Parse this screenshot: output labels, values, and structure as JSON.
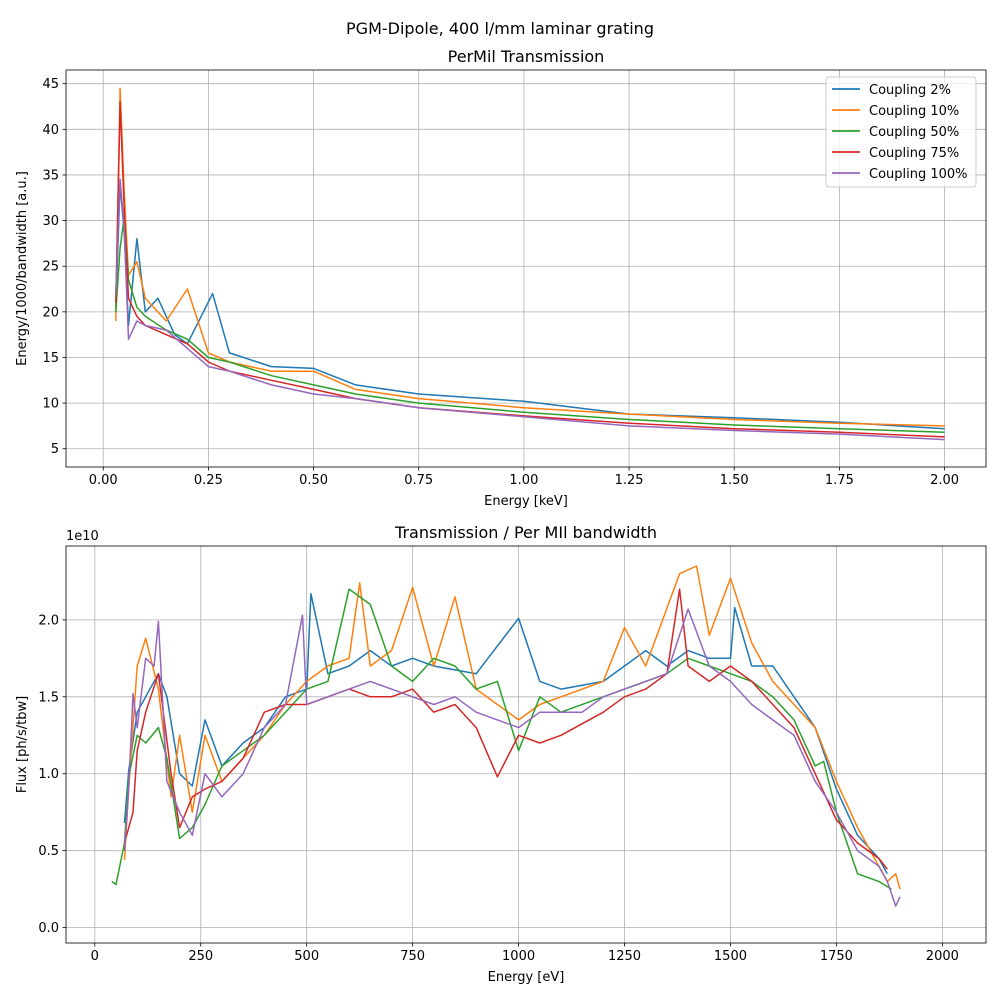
{
  "figure": {
    "suptitle": "PGM-Dipole, 400 l/mm laminar grating"
  },
  "colors": {
    "Coupling 2%": "#1f77b4",
    "Coupling 10%": "#ff7f0e",
    "Coupling 50%": "#2ca02c",
    "Coupling 75%": "#d62728",
    "Coupling 100%": "#9467bd"
  },
  "chart_data": [
    {
      "type": "line",
      "title": "PerMil Transmission",
      "xlabel": "Energy [keV]",
      "ylabel": "Energy/1000/bandwidth [a.u.]",
      "xlim": [
        -0.0885,
        2.0985
      ],
      "ylim": [
        3.0,
        46.5
      ],
      "xticks": [
        0.0,
        0.25,
        0.5,
        0.75,
        1.0,
        1.25,
        1.5,
        1.75,
        2.0
      ],
      "xtick_labels": [
        "0.00",
        "0.25",
        "0.50",
        "0.75",
        "1.00",
        "1.25",
        "1.50",
        "1.75",
        "2.00"
      ],
      "yticks": [
        5,
        10,
        15,
        20,
        25,
        30,
        35,
        40,
        45
      ],
      "ytick_labels": [
        "5",
        "10",
        "15",
        "20",
        "25",
        "30",
        "35",
        "40",
        "45"
      ],
      "grid": true,
      "legend": "upper right",
      "series": [
        {
          "name": "Coupling 2%",
          "x": [
            0.03,
            0.04,
            0.05,
            0.06,
            0.08,
            0.1,
            0.13,
            0.17,
            0.2,
            0.26,
            0.3,
            0.4,
            0.5,
            0.6,
            0.75,
            1.0,
            1.25,
            1.5,
            1.75,
            2.0
          ],
          "y": [
            20.5,
            34.0,
            28.5,
            18.5,
            28.0,
            20.0,
            21.5,
            17.5,
            16.5,
            22.0,
            15.5,
            14.0,
            13.8,
            12.0,
            11.0,
            10.2,
            8.8,
            8.4,
            7.9,
            7.2
          ]
        },
        {
          "name": "Coupling 10%",
          "x": [
            0.03,
            0.04,
            0.05,
            0.06,
            0.08,
            0.1,
            0.15,
            0.2,
            0.25,
            0.3,
            0.4,
            0.5,
            0.6,
            0.75,
            1.0,
            1.25,
            1.5,
            1.75,
            2.0
          ],
          "y": [
            19.0,
            44.5,
            33.0,
            24.0,
            25.5,
            21.5,
            19.0,
            22.5,
            15.5,
            14.5,
            13.5,
            13.5,
            11.5,
            10.5,
            9.5,
            8.8,
            8.2,
            7.8,
            7.5
          ]
        },
        {
          "name": "Coupling 50%",
          "x": [
            0.03,
            0.04,
            0.05,
            0.06,
            0.08,
            0.1,
            0.15,
            0.2,
            0.25,
            0.3,
            0.4,
            0.5,
            0.6,
            0.75,
            1.0,
            1.25,
            1.5,
            1.75,
            2.0
          ],
          "y": [
            20.0,
            27.0,
            30.5,
            23.5,
            20.5,
            19.5,
            18.0,
            17.0,
            15.0,
            14.5,
            13.0,
            12.0,
            11.0,
            10.0,
            9.0,
            8.2,
            7.6,
            7.2,
            6.8
          ]
        },
        {
          "name": "Coupling 75%",
          "x": [
            0.03,
            0.04,
            0.05,
            0.06,
            0.08,
            0.1,
            0.15,
            0.2,
            0.25,
            0.3,
            0.4,
            0.5,
            0.6,
            0.75,
            1.0,
            1.25,
            1.5,
            1.75,
            2.0
          ],
          "y": [
            21.0,
            43.0,
            31.0,
            21.5,
            19.5,
            18.5,
            17.5,
            16.5,
            14.5,
            13.5,
            12.5,
            11.5,
            10.5,
            9.5,
            8.6,
            7.8,
            7.2,
            6.8,
            6.3
          ]
        },
        {
          "name": "Coupling 100%",
          "x": [
            0.03,
            0.04,
            0.05,
            0.06,
            0.08,
            0.1,
            0.15,
            0.2,
            0.25,
            0.3,
            0.4,
            0.5,
            0.6,
            0.75,
            1.0,
            1.25,
            1.5,
            1.75,
            2.0
          ],
          "y": [
            22.0,
            34.5,
            29.0,
            17.0,
            19.0,
            18.5,
            18.0,
            16.0,
            14.0,
            13.5,
            12.0,
            11.0,
            10.5,
            9.5,
            8.5,
            7.5,
            7.0,
            6.6,
            6.0
          ]
        }
      ]
    },
    {
      "type": "line",
      "title": "Transmission / Per MIl bandwidth",
      "xlabel": "Energy [eV]",
      "ylabel": "Flux [ph/s/tbw]",
      "offset_text": "1e10",
      "xlim": [
        -68.0,
        2103.0
      ],
      "ylim": [
        -0.1,
        2.48
      ],
      "xticks": [
        0,
        250,
        500,
        750,
        1000,
        1250,
        1500,
        1750,
        2000
      ],
      "xtick_labels": [
        "0",
        "250",
        "500",
        "750",
        "1000",
        "1250",
        "1500",
        "1750",
        "2000"
      ],
      "yticks": [
        0.0,
        0.5,
        1.0,
        1.5,
        2.0
      ],
      "ytick_labels": [
        "0.0",
        "0.5",
        "1.0",
        "1.5",
        "2.0"
      ],
      "grid": true,
      "series": [
        {
          "name": "Coupling 2%",
          "x": [
            70,
            80,
            100,
            120,
            150,
            170,
            200,
            230,
            260,
            300,
            350,
            400,
            450,
            500,
            510,
            550,
            600,
            650,
            700,
            750,
            800,
            900,
            1000,
            1050,
            1100,
            1200,
            1250,
            1300,
            1350,
            1400,
            1450,
            1500,
            1510,
            1550,
            1600,
            1650,
            1700,
            1750,
            1800,
            1850,
            1870
          ],
          "y": [
            0.68,
            1.02,
            1.4,
            1.5,
            1.65,
            1.5,
            1.0,
            0.92,
            1.35,
            1.05,
            1.2,
            1.3,
            1.5,
            1.55,
            2.17,
            1.65,
            1.7,
            1.8,
            1.7,
            1.75,
            1.7,
            1.65,
            2.01,
            1.6,
            1.55,
            1.6,
            1.7,
            1.8,
            1.7,
            1.8,
            1.75,
            1.75,
            2.08,
            1.7,
            1.7,
            1.5,
            1.3,
            0.9,
            0.6,
            0.45,
            0.35
          ]
        },
        {
          "name": "Coupling 10%",
          "x": [
            70,
            80,
            100,
            120,
            150,
            180,
            200,
            230,
            260,
            300,
            350,
            400,
            450,
            500,
            550,
            600,
            625,
            650,
            700,
            750,
            800,
            850,
            900,
            1000,
            1050,
            1100,
            1200,
            1250,
            1300,
            1380,
            1420,
            1450,
            1500,
            1550,
            1600,
            1650,
            1700,
            1750,
            1800,
            1850,
            1870,
            1890,
            1900
          ],
          "y": [
            0.44,
            0.9,
            1.7,
            1.88,
            1.55,
            0.85,
            1.25,
            0.75,
            1.25,
            0.95,
            1.1,
            1.25,
            1.45,
            1.6,
            1.7,
            1.75,
            2.24,
            1.7,
            1.8,
            2.21,
            1.7,
            2.15,
            1.55,
            1.35,
            1.45,
            1.5,
            1.6,
            1.95,
            1.7,
            2.3,
            2.35,
            1.9,
            2.27,
            1.85,
            1.6,
            1.45,
            1.3,
            0.95,
            0.65,
            0.4,
            0.3,
            0.35,
            0.25
          ]
        },
        {
          "name": "Coupling 50%",
          "x": [
            40,
            50,
            70,
            80,
            100,
            120,
            150,
            170,
            200,
            230,
            260,
            300,
            350,
            400,
            450,
            500,
            550,
            600,
            650,
            700,
            750,
            800,
            850,
            900,
            950,
            1000,
            1050,
            1100,
            1200,
            1250,
            1300,
            1350,
            1400,
            1450,
            1500,
            1550,
            1600,
            1650,
            1700,
            1720,
            1750,
            1800,
            1850,
            1880
          ],
          "y": [
            0.3,
            0.28,
            0.55,
            0.98,
            1.25,
            1.2,
            1.3,
            1.1,
            0.58,
            0.65,
            0.8,
            1.05,
            1.15,
            1.25,
            1.4,
            1.55,
            1.6,
            2.2,
            2.1,
            1.7,
            1.6,
            1.75,
            1.7,
            1.55,
            1.6,
            1.15,
            1.5,
            1.4,
            1.5,
            1.55,
            1.6,
            1.65,
            1.75,
            1.7,
            1.65,
            1.6,
            1.5,
            1.35,
            1.05,
            1.08,
            0.75,
            0.35,
            0.3,
            0.25
          ]
        },
        {
          "name": "Coupling 75%",
          "x": [
            70,
            90,
            100,
            120,
            150,
            180,
            200,
            230,
            260,
            300,
            350,
            400,
            450,
            500,
            550,
            600,
            650,
            700,
            750,
            800,
            850,
            900,
            950,
            1000,
            1050,
            1100,
            1200,
            1250,
            1300,
            1350,
            1380,
            1400,
            1450,
            1500,
            1550,
            1600,
            1650,
            1700,
            1750,
            1800,
            1850,
            1870
          ],
          "y": [
            0.55,
            0.75,
            1.15,
            1.4,
            1.65,
            1.0,
            0.65,
            0.85,
            0.9,
            0.95,
            1.1,
            1.4,
            1.45,
            1.45,
            1.5,
            1.55,
            1.5,
            1.5,
            1.55,
            1.4,
            1.45,
            1.3,
            0.98,
            1.25,
            1.2,
            1.25,
            1.4,
            1.5,
            1.55,
            1.65,
            2.2,
            1.7,
            1.6,
            1.7,
            1.6,
            1.45,
            1.3,
            1.0,
            0.7,
            0.55,
            0.45,
            0.38
          ]
        },
        {
          "name": "Coupling 100%",
          "x": [
            70,
            80,
            90,
            100,
            120,
            140,
            150,
            170,
            200,
            230,
            260,
            300,
            350,
            400,
            450,
            490,
            500,
            550,
            600,
            650,
            700,
            750,
            800,
            850,
            900,
            950,
            1000,
            1050,
            1100,
            1150,
            1200,
            1250,
            1300,
            1350,
            1400,
            1450,
            1500,
            1550,
            1600,
            1650,
            1700,
            1750,
            1800,
            1850,
            1870,
            1890,
            1900
          ],
          "y": [
            0.5,
            0.9,
            1.52,
            1.3,
            1.75,
            1.7,
            1.99,
            0.95,
            0.75,
            0.6,
            1.0,
            0.85,
            1.0,
            1.3,
            1.45,
            2.03,
            1.45,
            1.5,
            1.55,
            1.6,
            1.55,
            1.5,
            1.45,
            1.5,
            1.4,
            1.35,
            1.3,
            1.4,
            1.4,
            1.4,
            1.5,
            1.55,
            1.6,
            1.65,
            2.07,
            1.7,
            1.6,
            1.45,
            1.35,
            1.25,
            0.95,
            0.75,
            0.5,
            0.4,
            0.3,
            0.14,
            0.2
          ]
        }
      ]
    }
  ]
}
